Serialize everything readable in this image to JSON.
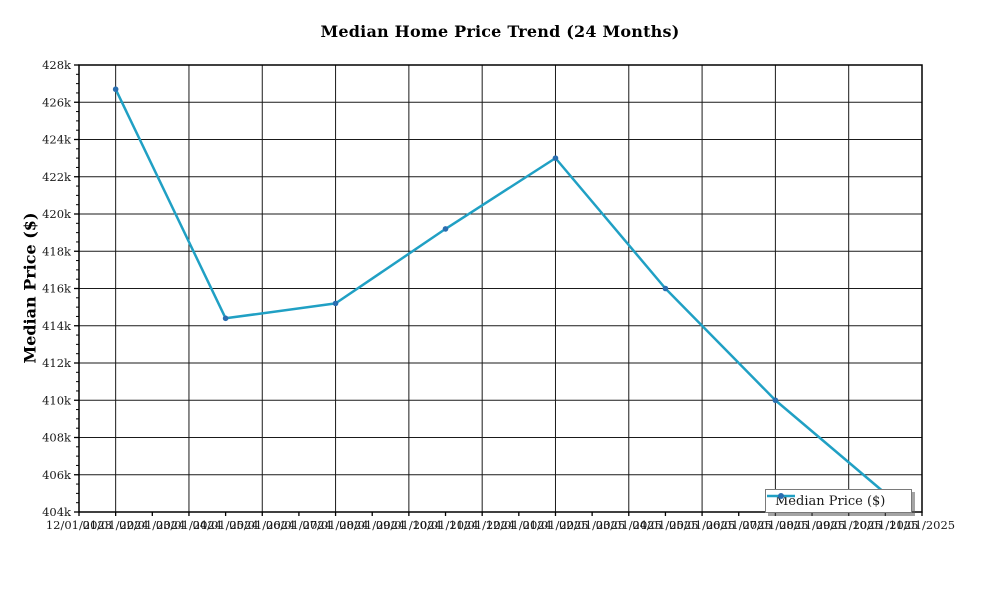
{
  "chart_data": {
    "type": "line",
    "title": "Median Home Price Trend (24 Months)",
    "ylabel": "Median Price ($)",
    "xlabel": "",
    "grid": true,
    "legend": {
      "label": "Median Price ($)",
      "position": "lower right"
    },
    "ylim": [
      404000,
      428000
    ],
    "y_major_step": 2000,
    "y_minor_step": 500,
    "y_tick_labels": [
      "404k",
      "406k",
      "408k",
      "410k",
      "412k",
      "414k",
      "416k",
      "418k",
      "420k",
      "422k",
      "424k",
      "426k",
      "428k"
    ],
    "x_tick_labels": [
      "12/01/2023",
      "01/01/2024",
      "02/01/2024",
      "03/01/2024",
      "04/01/2024",
      "05/01/2024",
      "06/01/2024",
      "07/01/2024",
      "08/01/2024",
      "09/01/2024",
      "10/01/2024",
      "11/01/2024",
      "12/01/2024",
      "01/01/2025",
      "02/01/2025",
      "03/01/2025",
      "04/01/2025",
      "05/01/2025",
      "06/01/2025",
      "07/01/2025",
      "08/01/2025",
      "09/01/2025",
      "10/01/2025",
      "11/01/2025"
    ],
    "colors": {
      "line": "#20a0c4",
      "marker": "#2a6eb0",
      "grid": "#1a1a1a",
      "text": "#1a1a1a"
    },
    "series": [
      {
        "name": "Median Price ($)",
        "points": [
          {
            "x": "01/01/2024",
            "y": 426700
          },
          {
            "x": "04/01/2024",
            "y": 414400
          },
          {
            "x": "07/01/2024",
            "y": 415200
          },
          {
            "x": "10/01/2024",
            "y": 419200
          },
          {
            "x": "01/01/2025",
            "y": 423000
          },
          {
            "x": "04/01/2025",
            "y": 416000
          },
          {
            "x": "07/01/2025",
            "y": 410000
          },
          {
            "x": "10/01/2025",
            "y": 405000
          }
        ]
      }
    ]
  }
}
